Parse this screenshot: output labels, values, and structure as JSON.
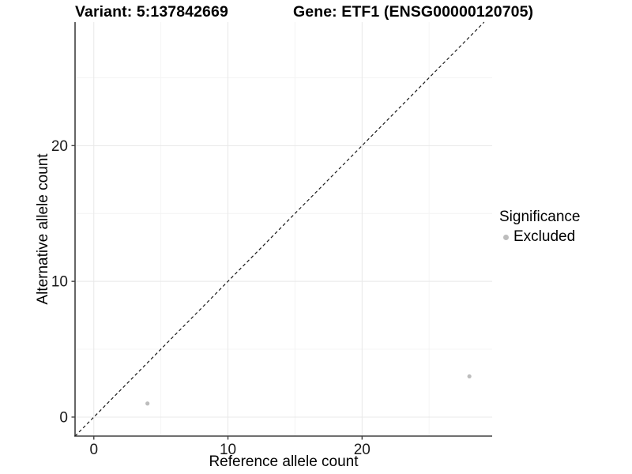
{
  "header": {
    "variant_title": "Variant: 5:137842669",
    "gene_title": "Gene: ETF1 (ENSG00000120705)"
  },
  "axes": {
    "x_title": "Reference allele count",
    "y_title": "Alternative allele count"
  },
  "legend": {
    "title": "Significance",
    "items": [
      {
        "label": "Excluded",
        "color": "#bdbdbd"
      }
    ]
  },
  "chart_data": {
    "type": "scatter",
    "title": "Variant: 5:137842669 / Gene: ETF1 (ENSG00000120705)",
    "xlabel": "Reference allele count",
    "ylabel": "Alternative allele count",
    "x_ticks": [
      0,
      10,
      20
    ],
    "y_ticks": [
      0,
      10,
      20
    ],
    "xlim": [
      -1.4,
      29.7
    ],
    "ylim": [
      -1.4,
      29.1
    ],
    "grid": "major+minor",
    "legend_position": "right",
    "identity_line": {
      "shown": true,
      "style": "dashed",
      "color": "#1a1a1a",
      "equation": "y = x"
    },
    "series": [
      {
        "name": "Excluded",
        "color": "#bdbdbd",
        "points": [
          {
            "x": 4,
            "y": 1
          },
          {
            "x": 28,
            "y": 3
          }
        ]
      }
    ]
  },
  "colors": {
    "point_excluded": "#bdbdbd",
    "gridline_major": "#e8e8e8",
    "gridline_minor": "#f4f4f4",
    "axis_line": "#404040",
    "tick_text": "#1a1a1a"
  }
}
